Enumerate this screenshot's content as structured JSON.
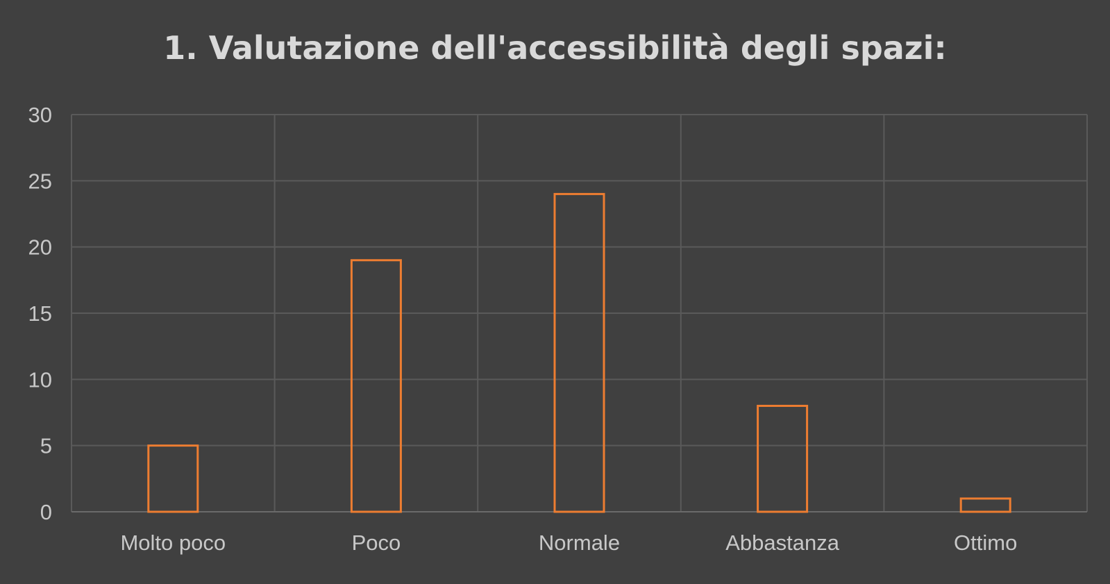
{
  "colors": {
    "background": "#404040",
    "bar_outline": "#ed7d31",
    "grid": "#5a5a5a",
    "text": "#d9d9d9"
  },
  "chart_data": {
    "type": "bar",
    "title": "1. Valutazione dell'accessibilità degli spazi:",
    "categories": [
      "Molto poco",
      "Poco",
      "Normale",
      "Abbastanza",
      "Ottimo"
    ],
    "values": [
      5,
      19,
      24,
      8,
      1
    ],
    "ylim": [
      0,
      30
    ],
    "yticks": [
      0,
      5,
      10,
      15,
      20,
      25,
      30
    ],
    "xlabel": "",
    "ylabel": "",
    "grid": true,
    "vertical_grid": true,
    "legend": "none",
    "bar_style": "outline"
  }
}
